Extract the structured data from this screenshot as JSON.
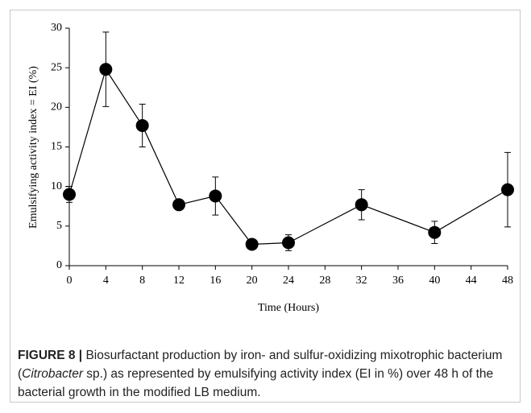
{
  "chart_data": {
    "type": "line",
    "ylabel": "Emulsifying activity index = EI (%)",
    "xlabel": "Time (Hours)",
    "x": [
      0,
      4,
      8,
      12,
      16,
      20,
      24,
      32,
      40,
      48
    ],
    "values": [
      9,
      24.8,
      17.7,
      7.7,
      8.8,
      2.7,
      2.9,
      7.7,
      4.2,
      9.6
    ],
    "errors": [
      1,
      4.7,
      2.7,
      0.3,
      2.4,
      0.3,
      1.0,
      1.9,
      1.4,
      4.7
    ],
    "color": "#000000",
    "xlim": [
      0,
      48
    ],
    "xticks": [
      0,
      4,
      8,
      12,
      16,
      20,
      24,
      28,
      32,
      36,
      40,
      44,
      48
    ],
    "ylim": [
      0,
      30
    ],
    "yticks": [
      0,
      5,
      10,
      15,
      20,
      25,
      30
    ]
  },
  "caption": {
    "label": "FIGURE 8 |",
    "text1": " Biosurfactant production by iron- and sulfur-oxidizing mixotrophic bacterium (",
    "italic": "Citrobacter",
    "text2": " sp.) as represented by emulsifying activity index (EI in %) over 48 h of the bacterial growth in the modified LB medium."
  }
}
